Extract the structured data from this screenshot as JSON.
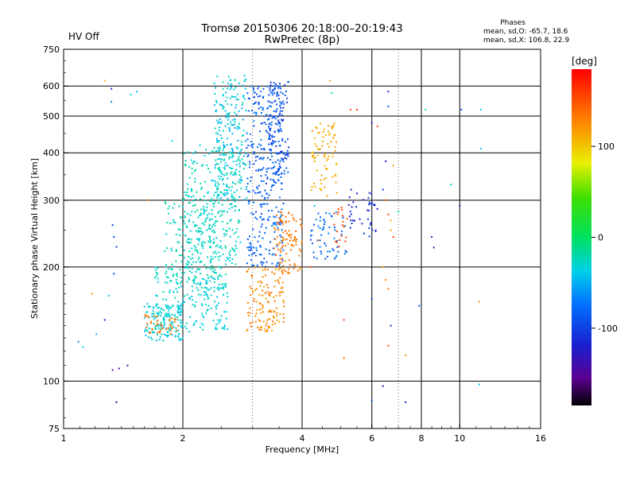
{
  "status": {
    "hv_label": "HV Off",
    "hv_color": "#cc0000"
  },
  "phases_box": {
    "title": "Phases",
    "line_o": "mean, sd,O: -65.7, 18.6",
    "line_x": "mean, sd,X: 106.8, 22.9"
  },
  "colorbar": {
    "unit_label": "[deg]",
    "ticks": [
      "100",
      "0",
      "-100"
    ],
    "tick_values": [
      100,
      0,
      -100
    ],
    "range": [
      -185,
      185
    ]
  },
  "chart_data": {
    "type": "scatter",
    "title": "Tromsø 20150306 20:18:00–20:19:43",
    "subtitle": "RwPretec (8p)",
    "xlabel": "Frequency [MHz]",
    "ylabel": "Stationary phase Virtual Height [km]",
    "xscale": "log",
    "yscale": "log",
    "xlim": [
      1,
      16
    ],
    "ylim": [
      75,
      750
    ],
    "xticks": [
      1,
      2,
      4,
      6,
      8,
      10,
      16
    ],
    "xtick_labels": [
      "1",
      "2",
      "4",
      "6",
      "8",
      "10",
      "16"
    ],
    "xgrid": [
      2,
      4,
      6,
      8,
      10
    ],
    "xgrid_minor": [
      3,
      7
    ],
    "yticks": [
      75,
      100,
      200,
      300,
      400,
      500,
      600,
      750
    ],
    "ytick_labels": [
      "75",
      "100",
      "200",
      "300",
      "400",
      "500",
      "600",
      "750"
    ],
    "ygrid": [
      100,
      200,
      300,
      400,
      500,
      600
    ],
    "grid": true,
    "color_scale": "phase [deg], -185 (black) to +185 (red)",
    "clusters": [
      {
        "name": "",
        "f": [
          1.6,
          2.0
        ],
        "h": [
          128,
          160
        ],
        "phase": [
          -45,
          -25
        ],
        "n": 130
      },
      {
        "name": "",
        "f": [
          1.7,
          2.6
        ],
        "h": [
          135,
          200
        ],
        "phase": [
          -42,
          -20
        ],
        "n": 220
      },
      {
        "name": "",
        "f": [
          1.8,
          2.5
        ],
        "h": [
          180,
          300
        ],
        "phase": [
          -35,
          -15
        ],
        "n": 160
      },
      {
        "name": "",
        "f": [
          2.0,
          2.8
        ],
        "h": [
          200,
          420
        ],
        "phase": [
          -40,
          -15
        ],
        "n": 280
      },
      {
        "name": "",
        "f": [
          2.4,
          2.9
        ],
        "h": [
          300,
          640
        ],
        "phase": [
          -55,
          -20
        ],
        "n": 220
      },
      {
        "name": "",
        "f": [
          2.9,
          3.6
        ],
        "h": [
          200,
          600
        ],
        "phase": [
          -95,
          -70
        ],
        "n": 320
      },
      {
        "name": "",
        "f": [
          3.3,
          3.7
        ],
        "h": [
          350,
          620
        ],
        "phase": [
          -110,
          -80
        ],
        "n": 120
      },
      {
        "name": "",
        "f": [
          2.9,
          3.6
        ],
        "h": [
          135,
          200
        ],
        "phase": [
          110,
          140
        ],
        "n": 130
      },
      {
        "name": "",
        "f": [
          3.4,
          4.0
        ],
        "h": [
          190,
          280
        ],
        "phase": [
          120,
          145
        ],
        "n": 110
      },
      {
        "name": "",
        "f": [
          1.6,
          1.95
        ],
        "h": [
          132,
          150
        ],
        "phase": [
          125,
          140
        ],
        "n": 40
      },
      {
        "name": "",
        "f": [
          4.2,
          4.9
        ],
        "h": [
          300,
          480
        ],
        "phase": [
          100,
          120
        ],
        "n": 80
      },
      {
        "name": "",
        "f": [
          4.2,
          5.2
        ],
        "h": [
          210,
          280
        ],
        "phase": [
          -95,
          -60
        ],
        "n": 60
      },
      {
        "name": "",
        "f": [
          5.2,
          6.2
        ],
        "h": [
          240,
          320
        ],
        "phase": [
          -120,
          -100
        ],
        "n": 40
      },
      {
        "name": "",
        "f": [
          4.8,
          5.2
        ],
        "h": [
          220,
          290
        ],
        "phase": [
          140,
          165
        ],
        "n": 20
      }
    ],
    "scattered_points": [
      {
        "f": 1.27,
        "h": 620,
        "phase": 110
      },
      {
        "f": 1.32,
        "h": 590,
        "phase": -110
      },
      {
        "f": 1.32,
        "h": 545,
        "phase": -60
      },
      {
        "f": 1.48,
        "h": 570,
        "phase": -30
      },
      {
        "f": 1.53,
        "h": 580,
        "phase": -40
      },
      {
        "f": 1.33,
        "h": 258,
        "phase": -100
      },
      {
        "f": 1.34,
        "h": 240,
        "phase": -90
      },
      {
        "f": 1.36,
        "h": 226,
        "phase": -105
      },
      {
        "f": 1.34,
        "h": 192,
        "phase": -80
      },
      {
        "f": 1.3,
        "h": 168,
        "phase": -40
      },
      {
        "f": 1.18,
        "h": 170,
        "phase": 120
      },
      {
        "f": 1.27,
        "h": 145,
        "phase": -130
      },
      {
        "f": 1.33,
        "h": 107,
        "phase": -150
      },
      {
        "f": 1.38,
        "h": 108,
        "phase": -140
      },
      {
        "f": 1.45,
        "h": 110,
        "phase": -130
      },
      {
        "f": 1.36,
        "h": 88,
        "phase": -160
      },
      {
        "f": 1.09,
        "h": 127,
        "phase": -60
      },
      {
        "f": 1.12,
        "h": 123,
        "phase": -40
      },
      {
        "f": 1.21,
        "h": 133,
        "phase": -50
      },
      {
        "f": 1.63,
        "h": 300,
        "phase": 130
      },
      {
        "f": 1.88,
        "h": 430,
        "phase": -40
      },
      {
        "f": 4.7,
        "h": 620,
        "phase": 110
      },
      {
        "f": 4.75,
        "h": 575,
        "phase": -20
      },
      {
        "f": 5.3,
        "h": 520,
        "phase": 150
      },
      {
        "f": 5.5,
        "h": 520,
        "phase": 160
      },
      {
        "f": 6.0,
        "h": 480,
        "phase": -110
      },
      {
        "f": 6.2,
        "h": 470,
        "phase": 150
      },
      {
        "f": 6.6,
        "h": 580,
        "phase": -110
      },
      {
        "f": 6.6,
        "h": 530,
        "phase": -80
      },
      {
        "f": 8.2,
        "h": 520,
        "phase": -20
      },
      {
        "f": 10.1,
        "h": 520,
        "phase": -90
      },
      {
        "f": 11.3,
        "h": 520,
        "phase": -40
      },
      {
        "f": 11.3,
        "h": 410,
        "phase": -40
      },
      {
        "f": 6.5,
        "h": 380,
        "phase": -120
      },
      {
        "f": 6.8,
        "h": 370,
        "phase": 110
      },
      {
        "f": 6.4,
        "h": 320,
        "phase": -100
      },
      {
        "f": 6.5,
        "h": 300,
        "phase": 140
      },
      {
        "f": 6.6,
        "h": 275,
        "phase": 150
      },
      {
        "f": 6.7,
        "h": 265,
        "phase": 110
      },
      {
        "f": 6.7,
        "h": 250,
        "phase": 120
      },
      {
        "f": 6.8,
        "h": 240,
        "phase": 150
      },
      {
        "f": 7.0,
        "h": 280,
        "phase": -20
      },
      {
        "f": 9.5,
        "h": 330,
        "phase": -30
      },
      {
        "f": 10.0,
        "h": 290,
        "phase": -140
      },
      {
        "f": 8.5,
        "h": 240,
        "phase": -110
      },
      {
        "f": 8.6,
        "h": 225,
        "phase": -120
      },
      {
        "f": 6.4,
        "h": 200,
        "phase": 120
      },
      {
        "f": 6.5,
        "h": 185,
        "phase": 130
      },
      {
        "f": 6.6,
        "h": 175,
        "phase": 140
      },
      {
        "f": 6.0,
        "h": 165,
        "phase": -100
      },
      {
        "f": 6.7,
        "h": 140,
        "phase": -110
      },
      {
        "f": 7.3,
        "h": 117,
        "phase": 120
      },
      {
        "f": 6.6,
        "h": 124,
        "phase": 150
      },
      {
        "f": 5.1,
        "h": 145,
        "phase": 150
      },
      {
        "f": 5.1,
        "h": 115,
        "phase": 140
      },
      {
        "f": 6.4,
        "h": 97,
        "phase": -120
      },
      {
        "f": 6.0,
        "h": 89,
        "phase": -90
      },
      {
        "f": 7.3,
        "h": 88,
        "phase": -110
      },
      {
        "f": 7.9,
        "h": 158,
        "phase": -80
      },
      {
        "f": 11.2,
        "h": 162,
        "phase": 120
      },
      {
        "f": 11.2,
        "h": 98,
        "phase": -40
      },
      {
        "f": 4.2,
        "h": 200,
        "phase": 150
      },
      {
        "f": 4.4,
        "h": 235,
        "phase": 130
      },
      {
        "f": 4.3,
        "h": 290,
        "phase": -50
      }
    ]
  }
}
